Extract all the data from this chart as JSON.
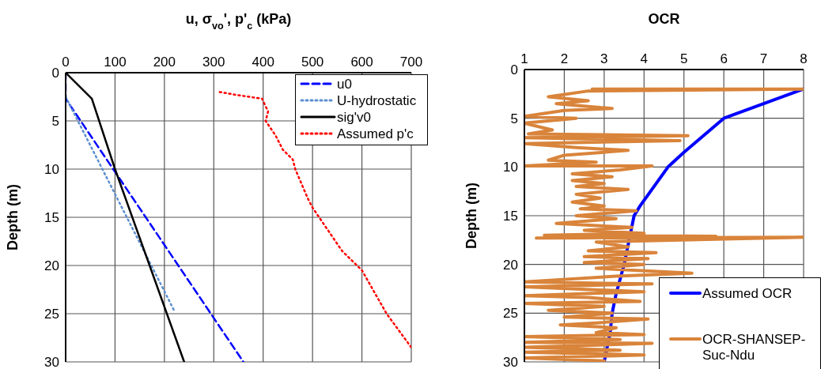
{
  "chart_data": [
    {
      "type": "line",
      "xlabel": "u, σ$_{vo}$', p'$_{c}$  (kPa)",
      "ylabel": "Depth (m)",
      "xlim": [
        0,
        700
      ],
      "xticks": [
        0,
        100,
        200,
        300,
        400,
        500,
        600,
        700
      ],
      "ylim": [
        30,
        0
      ],
      "yticks": [
        0,
        5,
        10,
        15,
        20,
        25,
        30
      ],
      "grid": true,
      "legend": "top right",
      "series": [
        {
          "name": "u0",
          "color": "#0000ff",
          "line_style": "dashed",
          "x": [
            0,
            0,
            360
          ],
          "values": [
            0,
            2.7,
            30
          ]
        },
        {
          "name": "U-hydrostatic",
          "color": "#5b8fd0",
          "line_style": "dotted",
          "x": [
            0,
            220
          ],
          "values": [
            2.5,
            24.7
          ]
        },
        {
          "name": "sig'v0",
          "color": "#000000",
          "line_style": "solid",
          "x": [
            0,
            53,
            100,
            240
          ],
          "values": [
            0,
            2.7,
            10,
            30
          ]
        },
        {
          "name": "Assumed p'c",
          "color": "#ff0000",
          "line_style": "dotted",
          "x": [
            312,
            345,
            398,
            405,
            410,
            405,
            425,
            440,
            460,
            465,
            490,
            500,
            520,
            560,
            600,
            650,
            700
          ],
          "values": [
            2,
            2.3,
            2.7,
            3.5,
            4,
            5,
            6.5,
            8,
            9,
            10,
            13,
            14,
            15.5,
            18.5,
            20.5,
            25,
            28.5
          ]
        }
      ]
    },
    {
      "type": "line",
      "xlabel": "OCR",
      "ylabel": "Depth (m)",
      "xlim": [
        1,
        8
      ],
      "xticks": [
        1,
        2,
        3,
        4,
        5,
        6,
        7,
        8
      ],
      "ylim": [
        30,
        0
      ],
      "yticks": [
        0,
        5,
        10,
        15,
        20,
        25,
        30
      ],
      "grid": true,
      "legend": "bottom right",
      "series": [
        {
          "name": "Assumed OCR",
          "color": "#0000ff",
          "line_style": "solid",
          "x": [
            8,
            6,
            5,
            4.6,
            3.9,
            3.75,
            3.7,
            3.6,
            3.5,
            3.3,
            3.2,
            3.15,
            3
          ],
          "values": [
            2,
            5,
            8.5,
            10,
            14,
            15,
            16,
            18,
            20,
            23,
            25,
            27,
            30
          ]
        },
        {
          "name": "OCR-SHANSEP-Suc-Ndu",
          "color": "#d9843b",
          "line_style": "solid",
          "x": [
            2.7,
            8.0,
            2.6,
            1.6,
            2.6,
            1.8,
            3.2,
            2.0,
            1.0,
            2.3,
            1.0,
            1.7,
            1.1,
            5.1,
            1.0,
            4.9,
            1.0,
            2.3,
            3.6,
            2.0,
            1.6,
            2.8,
            1.0,
            4.2,
            3.4,
            2.2,
            3.2,
            2.2,
            3.0,
            2.3,
            3.6,
            2.3,
            2.9,
            2.2,
            3.0,
            2.4,
            3.8,
            2.3,
            3.3,
            1.8,
            3.7,
            2.5,
            4.0,
            1.5,
            5.8,
            1.3,
            8.0,
            2.8,
            3.6,
            2.6,
            4.3,
            2.5,
            4.1,
            2.5,
            4.0,
            2.8,
            5.2,
            3.3,
            1.0,
            4.2,
            1.0,
            4.0,
            1.0,
            2.6,
            3.9,
            1.0,
            3.0,
            1.6,
            3.2,
            2.0,
            4.1,
            2.8,
            1.9,
            3.3,
            2.8,
            4.0,
            1.0,
            3.4,
            1.0,
            4.2,
            1.0,
            3.4,
            1.0,
            4.0,
            1.0,
            3.0
          ],
          "values": [
            2.0,
            2.0,
            2.2,
            2.8,
            3.2,
            3.5,
            4.0,
            4.2,
            4.8,
            5.0,
            5.5,
            6.2,
            6.6,
            6.8,
            7.0,
            7.3,
            7.6,
            8.0,
            8.3,
            8.8,
            9.3,
            9.5,
            9.9,
            9.9,
            10.3,
            10.7,
            11.0,
            11.4,
            11.7,
            12.0,
            12.3,
            12.8,
            13.2,
            13.6,
            14.0,
            14.3,
            14.5,
            15.0,
            15.3,
            15.8,
            16.2,
            16.5,
            16.8,
            17.0,
            17.1,
            17.3,
            17.2,
            17.7,
            18.2,
            18.6,
            18.8,
            19.2,
            19.4,
            19.8,
            20.0,
            20.4,
            20.9,
            21.2,
            21.8,
            22.0,
            22.3,
            22.8,
            23.2,
            23.4,
            23.8,
            24.0,
            24.3,
            24.7,
            25.0,
            25.4,
            25.6,
            26.0,
            26.2,
            26.5,
            27.0,
            27.2,
            27.4,
            27.7,
            28.0,
            28.1,
            28.5,
            28.8,
            29.0,
            29.3,
            29.6,
            29.9
          ]
        }
      ]
    }
  ]
}
